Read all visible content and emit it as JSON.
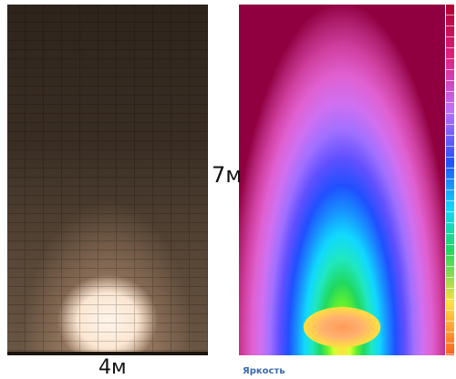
{
  "labels": {
    "height": "7м",
    "width": "4м",
    "legend": "Яркость"
  }
}
